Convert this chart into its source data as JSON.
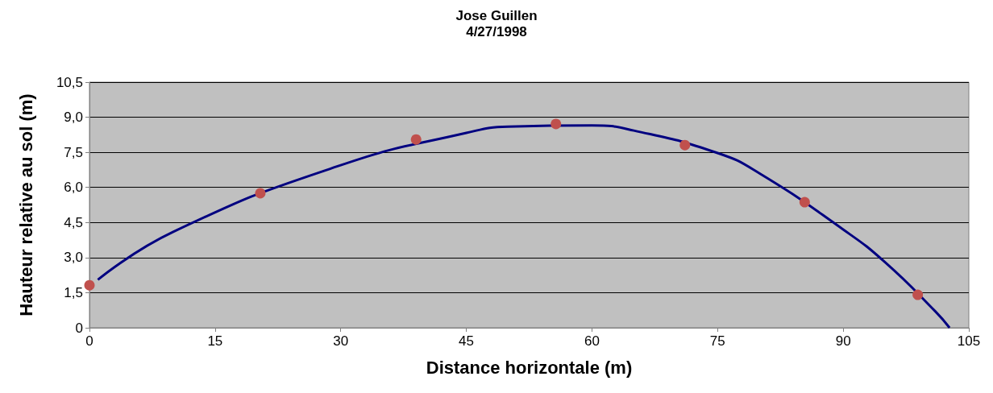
{
  "chart_data": {
    "type": "scatter",
    "title": "Jose Guillen\n4/27/1998",
    "xlabel": "Distance horizontale (m)",
    "ylabel": "Hauteur relative au sol (m)",
    "series": [
      {
        "type": "line",
        "color": "#000080",
        "x": [
          1,
          10,
          30,
          45,
          50,
          60,
          65,
          75,
          80,
          90,
          95,
          101,
          102.7
        ],
        "values": [
          2.05,
          4.1,
          6.95,
          8.33,
          8.6,
          8.65,
          8.43,
          7.47,
          6.6,
          4.2,
          2.8,
          0.7,
          0
        ],
        "marker": "none",
        "line_style": "solid"
      },
      {
        "type": "scatter",
        "color": "#c0504d",
        "x": [
          0,
          20.4,
          39,
          55.7,
          71.1,
          85.4,
          98.9
        ],
        "values": [
          1.82,
          5.75,
          8.05,
          8.71,
          7.81,
          5.37,
          1.41
        ],
        "marker": "circle"
      }
    ],
    "xlim": [
      0,
      105
    ],
    "xticks": [
      0,
      15,
      30,
      45,
      60,
      75,
      90,
      105
    ],
    "ylim": [
      0,
      10.5
    ],
    "yticks": [
      0,
      {
        "value": 1.5,
        "label": "1,5"
      },
      {
        "value": 3,
        "label": "3,0"
      },
      {
        "value": 4.5,
        "label": "4,5"
      },
      {
        "value": 6,
        "label": "6,0"
      },
      {
        "value": 7.5,
        "label": "7,5"
      },
      {
        "value": 9,
        "label": "9,0"
      },
      {
        "value": 10.5,
        "label": "10,5"
      }
    ],
    "grid": "y",
    "legend": false
  }
}
